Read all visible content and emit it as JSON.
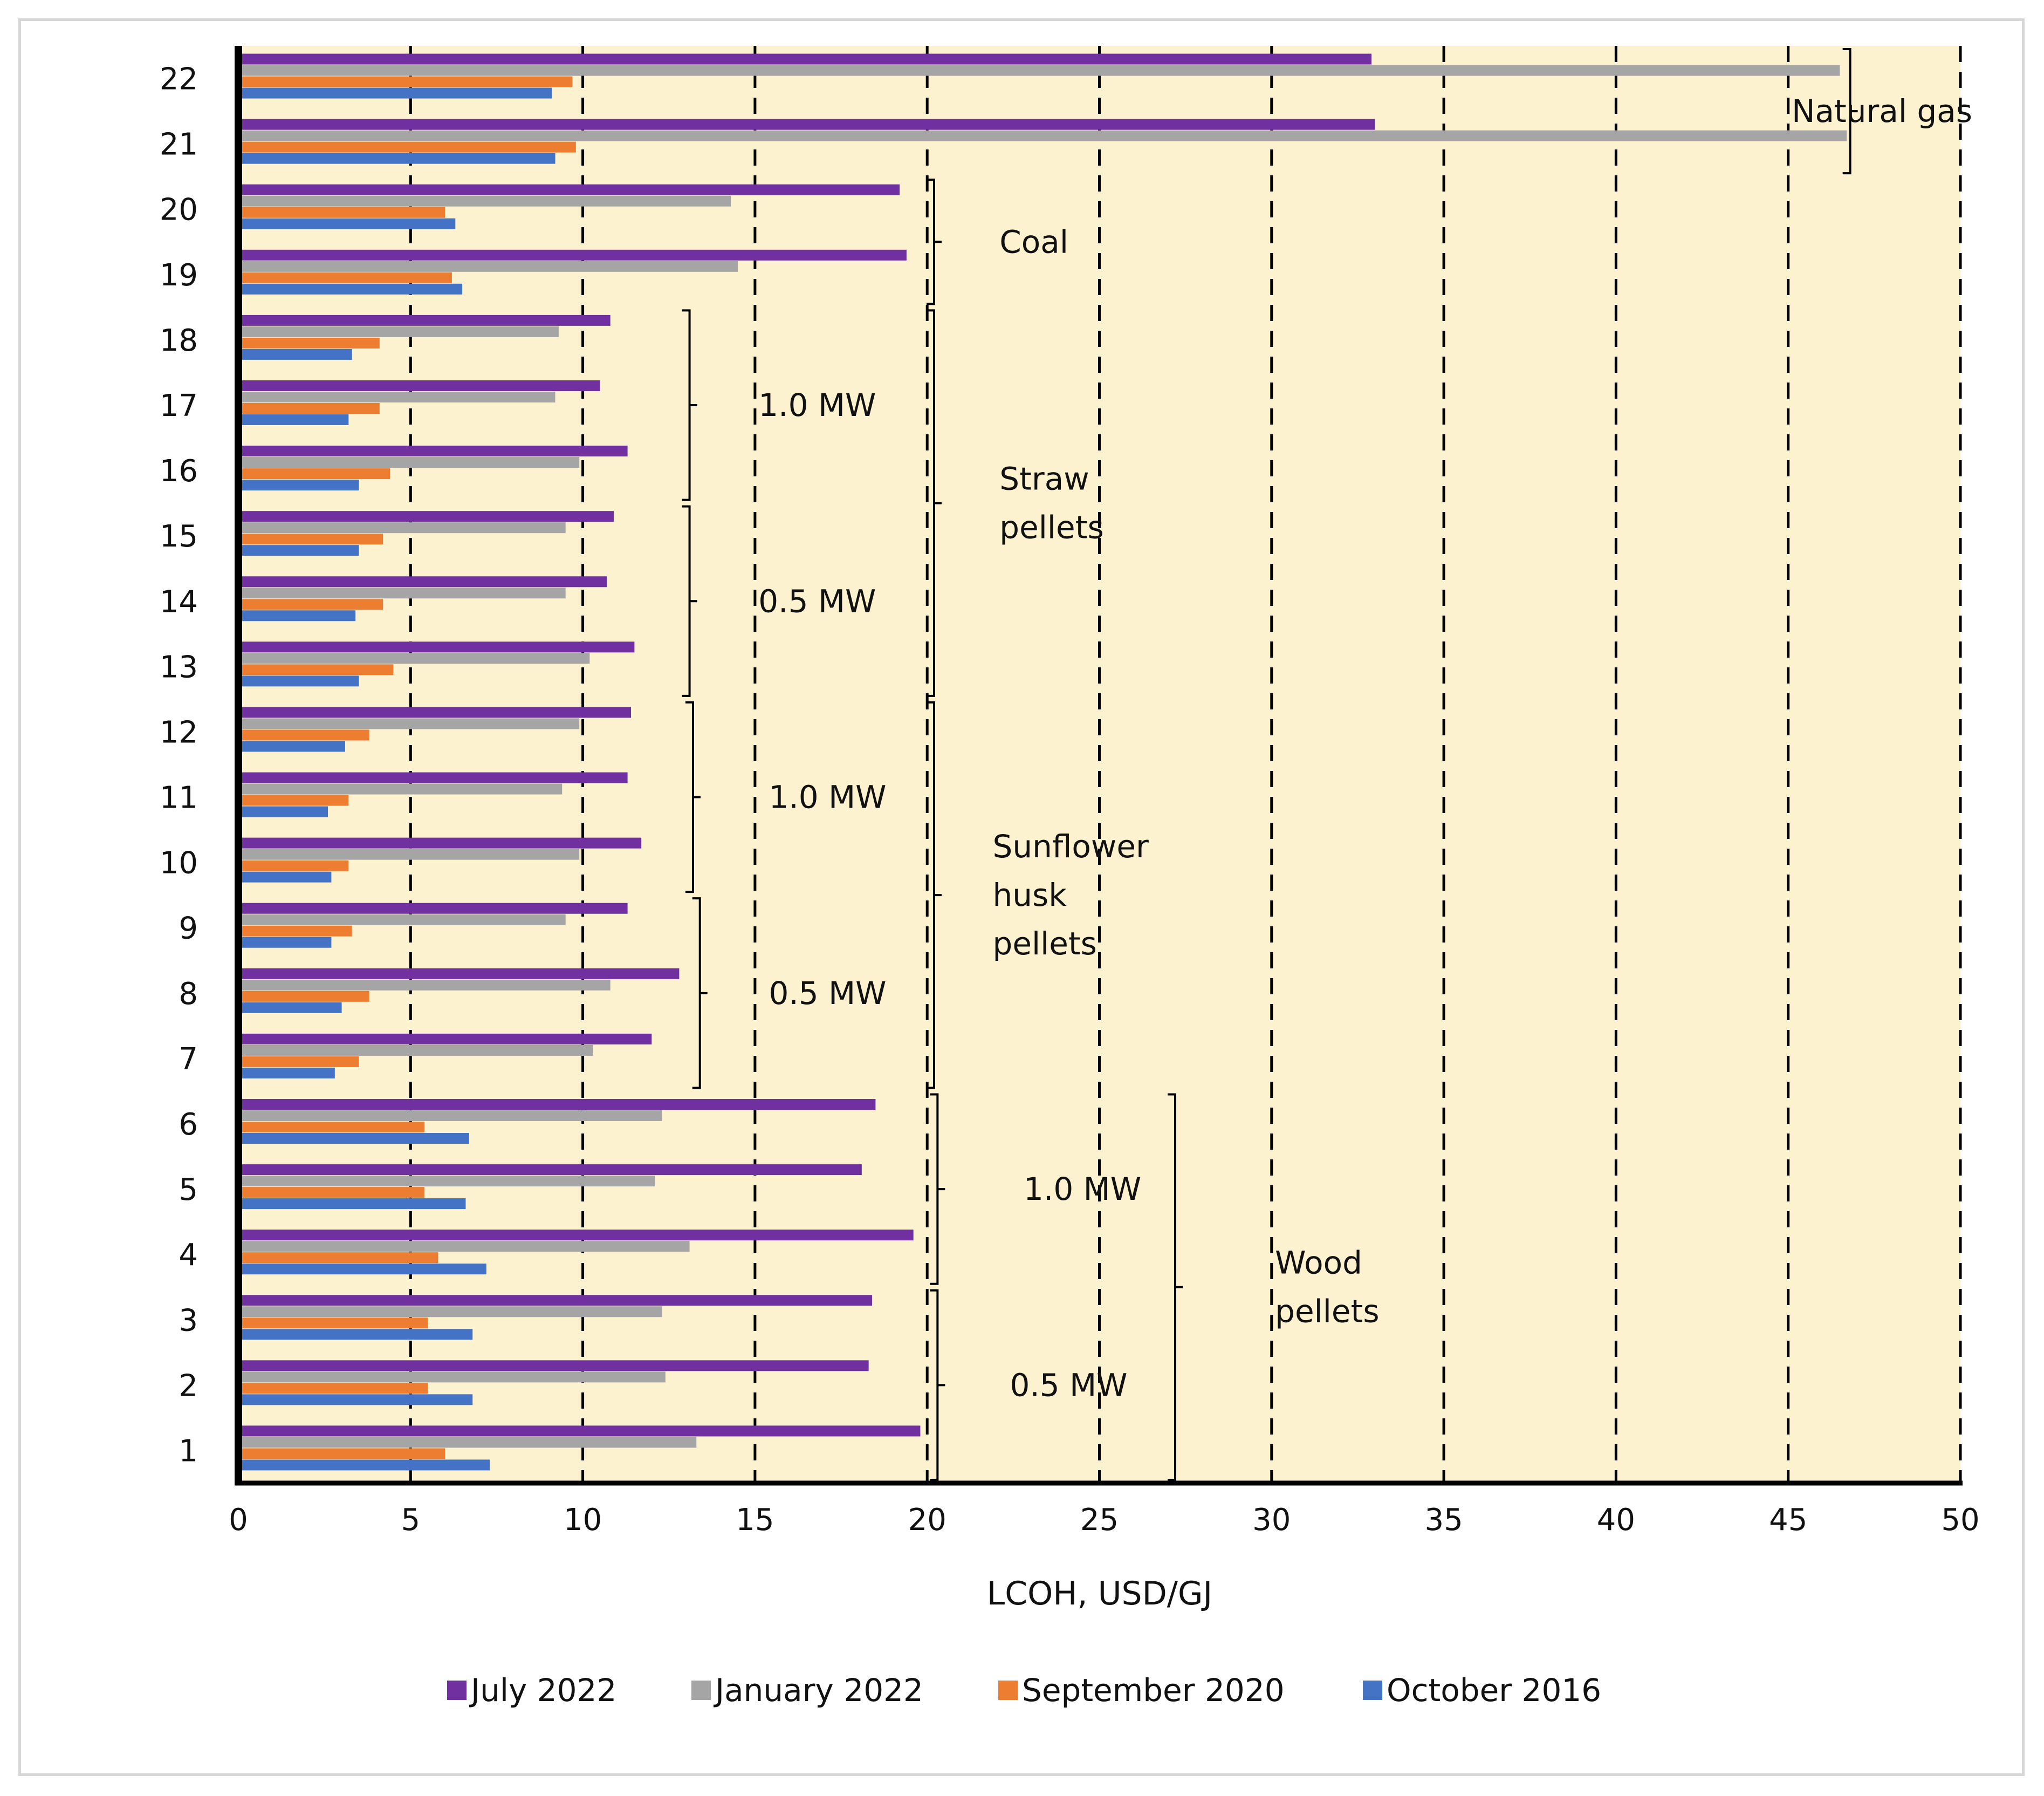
{
  "chart_data": {
    "type": "bar",
    "orientation": "horizontal",
    "title": "",
    "xlabel": "LCOH, USD/GJ",
    "ylabel": "",
    "xlim": [
      0,
      50
    ],
    "x_ticks": [
      0,
      5,
      10,
      15,
      20,
      25,
      30,
      35,
      40,
      45,
      50
    ],
    "x_tick_labels": [
      "0",
      "5",
      "10",
      "15",
      "20",
      "25",
      "30",
      "35",
      "40",
      "45",
      "50"
    ],
    "categories": [
      "1",
      "2",
      "3",
      "4",
      "5",
      "6",
      "7",
      "8",
      "9",
      "10",
      "11",
      "12",
      "13",
      "14",
      "15",
      "16",
      "17",
      "18",
      "19",
      "20",
      "21",
      "22"
    ],
    "grid": "vertical dashed",
    "legend_position": "bottom",
    "series": [
      {
        "name": "July 2022",
        "color": "#7030a0",
        "values": [
          19.8,
          18.3,
          18.4,
          19.6,
          18.1,
          18.5,
          12.0,
          12.8,
          11.3,
          11.7,
          11.3,
          11.4,
          11.5,
          10.7,
          10.9,
          11.3,
          10.5,
          10.8,
          19.4,
          19.2,
          33.0,
          32.9
        ]
      },
      {
        "name": "January 2022",
        "color": "#a5a5a5",
        "values": [
          13.3,
          12.4,
          12.3,
          13.1,
          12.1,
          12.3,
          10.3,
          10.8,
          9.5,
          9.9,
          9.4,
          9.9,
          10.2,
          9.5,
          9.5,
          9.9,
          9.2,
          9.3,
          14.5,
          14.3,
          46.7,
          46.5
        ]
      },
      {
        "name": "September 2020",
        "color": "#ed7d31",
        "values": [
          6.0,
          5.5,
          5.5,
          5.8,
          5.4,
          5.4,
          3.5,
          3.8,
          3.3,
          3.2,
          3.2,
          3.8,
          4.5,
          4.2,
          4.2,
          4.4,
          4.1,
          4.1,
          6.2,
          6.0,
          9.8,
          9.7
        ]
      },
      {
        "name": "October 2016",
        "color": "#4472c4",
        "values": [
          7.3,
          6.8,
          6.8,
          7.2,
          6.6,
          6.7,
          2.8,
          3.0,
          2.7,
          2.7,
          2.6,
          3.1,
          3.5,
          3.4,
          3.5,
          3.5,
          3.2,
          3.3,
          6.5,
          6.3,
          9.2,
          9.1
        ]
      }
    ],
    "annotations": [
      {
        "id": "wood-05mw",
        "text": [
          "0.5 MW"
        ],
        "bracket_at_x": 20.3,
        "rows": [
          1,
          3
        ],
        "text_x": 22.4
      },
      {
        "id": "wood-10mw",
        "text": [
          "1.0 MW"
        ],
        "bracket_at_x": 20.3,
        "rows": [
          4,
          6
        ],
        "text_x": 22.8
      },
      {
        "id": "wood-pellets",
        "text": [
          "Wood",
          "pellets"
        ],
        "bracket_at_x": 27.2,
        "rows": [
          1,
          6
        ],
        "text_x": 30.1
      },
      {
        "id": "sunflower-05mw",
        "text": [
          "0.5 MW"
        ],
        "bracket_at_x": 13.4,
        "rows": [
          7,
          9
        ],
        "text_x": 15.4
      },
      {
        "id": "sunflower-10mw",
        "text": [
          "1.0 MW"
        ],
        "bracket_at_x": 13.2,
        "rows": [
          10,
          12
        ],
        "text_x": 15.4
      },
      {
        "id": "sunflower-pellets",
        "text": [
          "Sunflower",
          "husk",
          "pellets"
        ],
        "bracket_at_x": 20.2,
        "rows": [
          7,
          12
        ],
        "text_x": 21.9
      },
      {
        "id": "straw-05mw",
        "text": [
          "0.5 MW"
        ],
        "bracket_at_x": 13.1,
        "rows": [
          13,
          15
        ],
        "text_x": 15.1
      },
      {
        "id": "straw-10mw",
        "text": [
          "1.0 MW"
        ],
        "bracket_at_x": 13.1,
        "rows": [
          16,
          18
        ],
        "text_x": 15.1
      },
      {
        "id": "straw-pellets",
        "text": [
          "Straw",
          "pellets"
        ],
        "bracket_at_x": 20.2,
        "rows": [
          13,
          18
        ],
        "text_x": 22.1
      },
      {
        "id": "coal",
        "text": [
          "Coal"
        ],
        "bracket_at_x": 20.2,
        "rows": [
          19,
          20
        ],
        "text_x": 22.1
      },
      {
        "id": "natural-gas",
        "text": [
          "Natural gas"
        ],
        "bracket_at_x": 46.8,
        "rows": [
          21,
          22
        ],
        "text_x": 45.1
      }
    ]
  }
}
